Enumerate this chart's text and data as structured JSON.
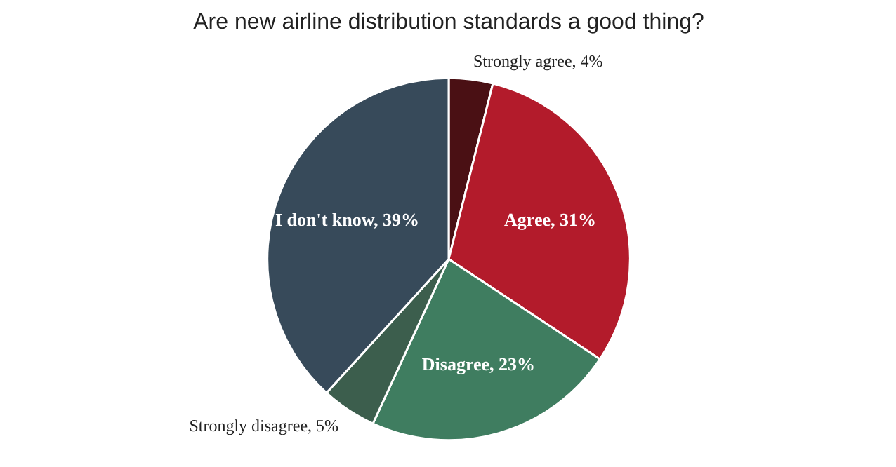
{
  "chart_data": {
    "type": "pie",
    "title": "Are new airline distribution standards a good thing?",
    "categories": [
      "Strongly agree",
      "Agree",
      "Disagree",
      "Strongly disagree",
      "I don't know"
    ],
    "values": [
      4,
      31,
      23,
      5,
      39
    ],
    "colors": [
      "#4a1014",
      "#b31b2b",
      "#3f7d60",
      "#3c5e4d",
      "#374a5a"
    ],
    "value_labels": [
      "4%",
      "31%",
      "23%",
      "5%",
      "39%"
    ]
  }
}
